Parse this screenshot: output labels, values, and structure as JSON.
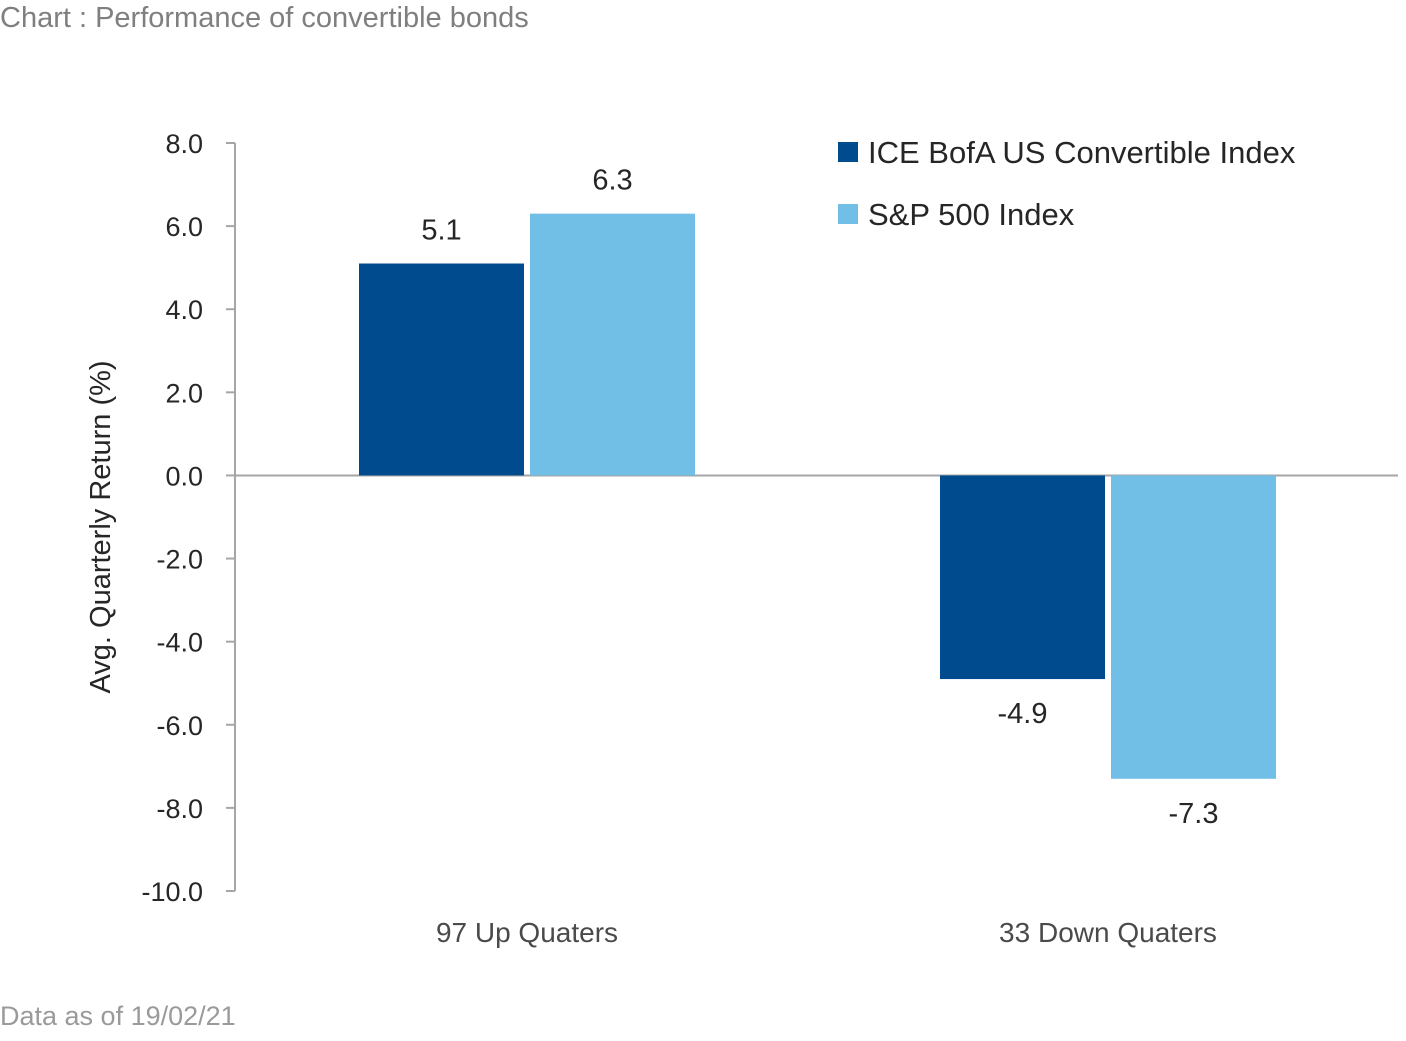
{
  "title": "Chart : Performance of convertible bonds",
  "footer": "Data as of 19/02/21",
  "colors": {
    "series1": "#004b8d",
    "series2": "#71bee6",
    "axis": "#a6a6a6"
  },
  "chart_data": {
    "type": "bar",
    "categories": [
      "97 Up Quaters",
      "33 Down Quaters"
    ],
    "series": [
      {
        "name": "ICE BofA US Convertible Index",
        "values": [
          5.1,
          -4.9
        ],
        "labels": [
          "5.1",
          "-4.9"
        ]
      },
      {
        "name": "S&P 500 Index",
        "values": [
          6.3,
          -7.3
        ],
        "labels": [
          "6.3",
          "-7.3"
        ]
      }
    ],
    "ylabel": "Avg. Quarterly Return (%)",
    "xlabel": "",
    "ylim": [
      -10,
      8
    ],
    "yticks": [
      8,
      6,
      4,
      2,
      0,
      -2,
      -4,
      -6,
      -8,
      -10
    ],
    "ytick_labels": [
      "8.0",
      "6.0",
      "4.0",
      "2.0",
      "0.0",
      "-2.0",
      "-4.0",
      "-6.0",
      "-8.0",
      "-10.0"
    ],
    "grid": false,
    "legend_position": "top-right"
  }
}
